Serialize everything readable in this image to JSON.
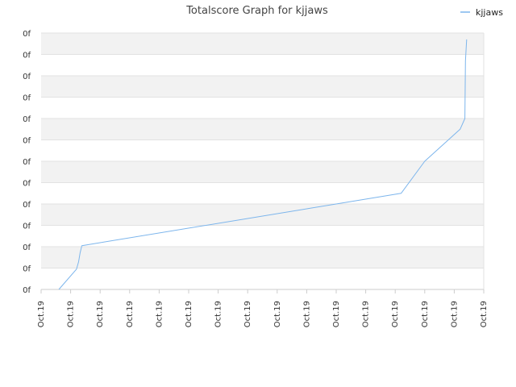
{
  "chart_data": {
    "type": "line",
    "title": "Totalscore Graph for kjjaws",
    "xlabel": "",
    "ylabel": "",
    "legend": {
      "placement": "top-right"
    },
    "grid": {
      "horizontal": true,
      "alternating_bands": true
    },
    "xlim": [
      0,
      15
    ],
    "ylim": [
      0,
      12
    ],
    "x_tick_labels": [
      "Oct.19",
      "Oct.19",
      "Oct.19",
      "Oct.19",
      "Oct.19",
      "Oct.19",
      "Oct.19",
      "Oct.19",
      "Oct.19",
      "Oct.19",
      "Oct.19",
      "Oct.19",
      "Oct.19",
      "Oct.19",
      "Oct.19",
      "Oct.19"
    ],
    "y_tick_labels": [
      "0f",
      "0f",
      "0f",
      "0f",
      "0f",
      "0f",
      "0f",
      "0f",
      "0f",
      "0f",
      "0f",
      "0f",
      "0f"
    ],
    "series": [
      {
        "name": "kjjaws",
        "color": "#7cb5ec",
        "x": [
          0.6,
          1.2,
          1.27,
          1.32,
          1.38,
          12.2,
          13.0,
          14.2,
          14.36,
          14.38,
          14.42
        ],
        "y": [
          0,
          0.95,
          1.3,
          1.7,
          2.05,
          4.5,
          6.0,
          7.5,
          8.0,
          10.7,
          11.7
        ]
      }
    ]
  }
}
